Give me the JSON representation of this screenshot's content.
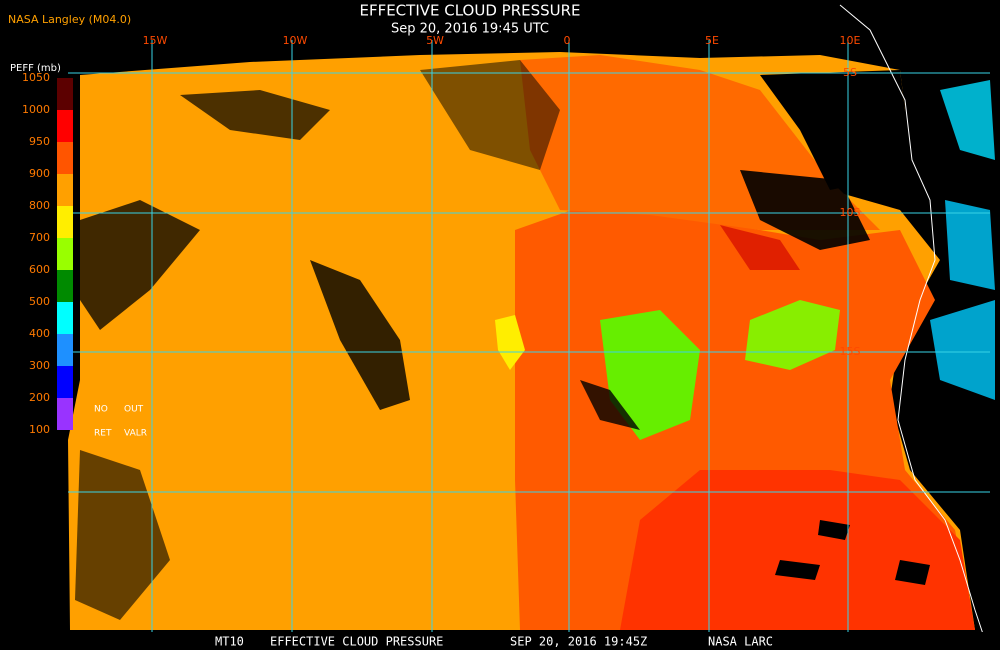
{
  "header": {
    "source": "NASA Langley (M04.0)",
    "title": "EFFECTIVE CLOUD PRESSURE",
    "subtitle": "Sep 20, 2016 19:45 UTC"
  },
  "colorbar": {
    "unit_label": "PEFF (mb)",
    "ticks": [
      1050,
      1000,
      950,
      900,
      800,
      700,
      600,
      500,
      400,
      300,
      200,
      100
    ],
    "colors": [
      "#5c0000",
      "#ff0000",
      "#ff5500",
      "#ffa000",
      "#ffee00",
      "#99ff00",
      "#008a00",
      "#00ffff",
      "#1e90ff",
      "#0000ff",
      "#9933ff"
    ],
    "notes": [
      "NO",
      "OUT",
      "RET",
      "VALR"
    ]
  },
  "grid": {
    "lon_labels": [
      "15W",
      "10W",
      "5W",
      "0",
      "5E",
      "10E"
    ],
    "lat_labels": [
      "5S",
      "10S",
      "15S"
    ]
  },
  "footer": [
    "MT10",
    "EFFECTIVE CLOUD PRESSURE",
    "SEP 20, 2016 19:45Z",
    "NASA LARC"
  ]
}
